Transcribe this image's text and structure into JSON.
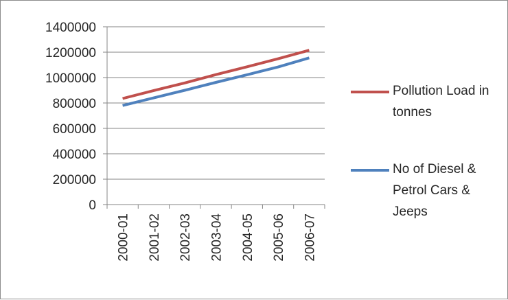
{
  "chart_data": {
    "type": "line",
    "categories": [
      "2000-01",
      "2001-02",
      "2002-03",
      "2003-04",
      "2004-05",
      "2005-06",
      "2006-07"
    ],
    "series": [
      {
        "name": "Pollution Load in tonnes",
        "color": "#c0504d",
        "values": [
          835000,
          898000,
          958000,
          1023000,
          1085000,
          1148000,
          1215000
        ]
      },
      {
        "name": "No of Diesel & Petrol Cars & Jeeps",
        "color": "#4f81bd",
        "values": [
          780000,
          840000,
          900000,
          962000,
          1022000,
          1083000,
          1155000
        ]
      }
    ],
    "ylim": [
      0,
      1400000
    ],
    "yticks": [
      0,
      200000,
      400000,
      600000,
      800000,
      1000000,
      1200000,
      1400000
    ],
    "grid": true,
    "legend_position": "right",
    "title": "",
    "xlabel": "",
    "ylabel": ""
  }
}
